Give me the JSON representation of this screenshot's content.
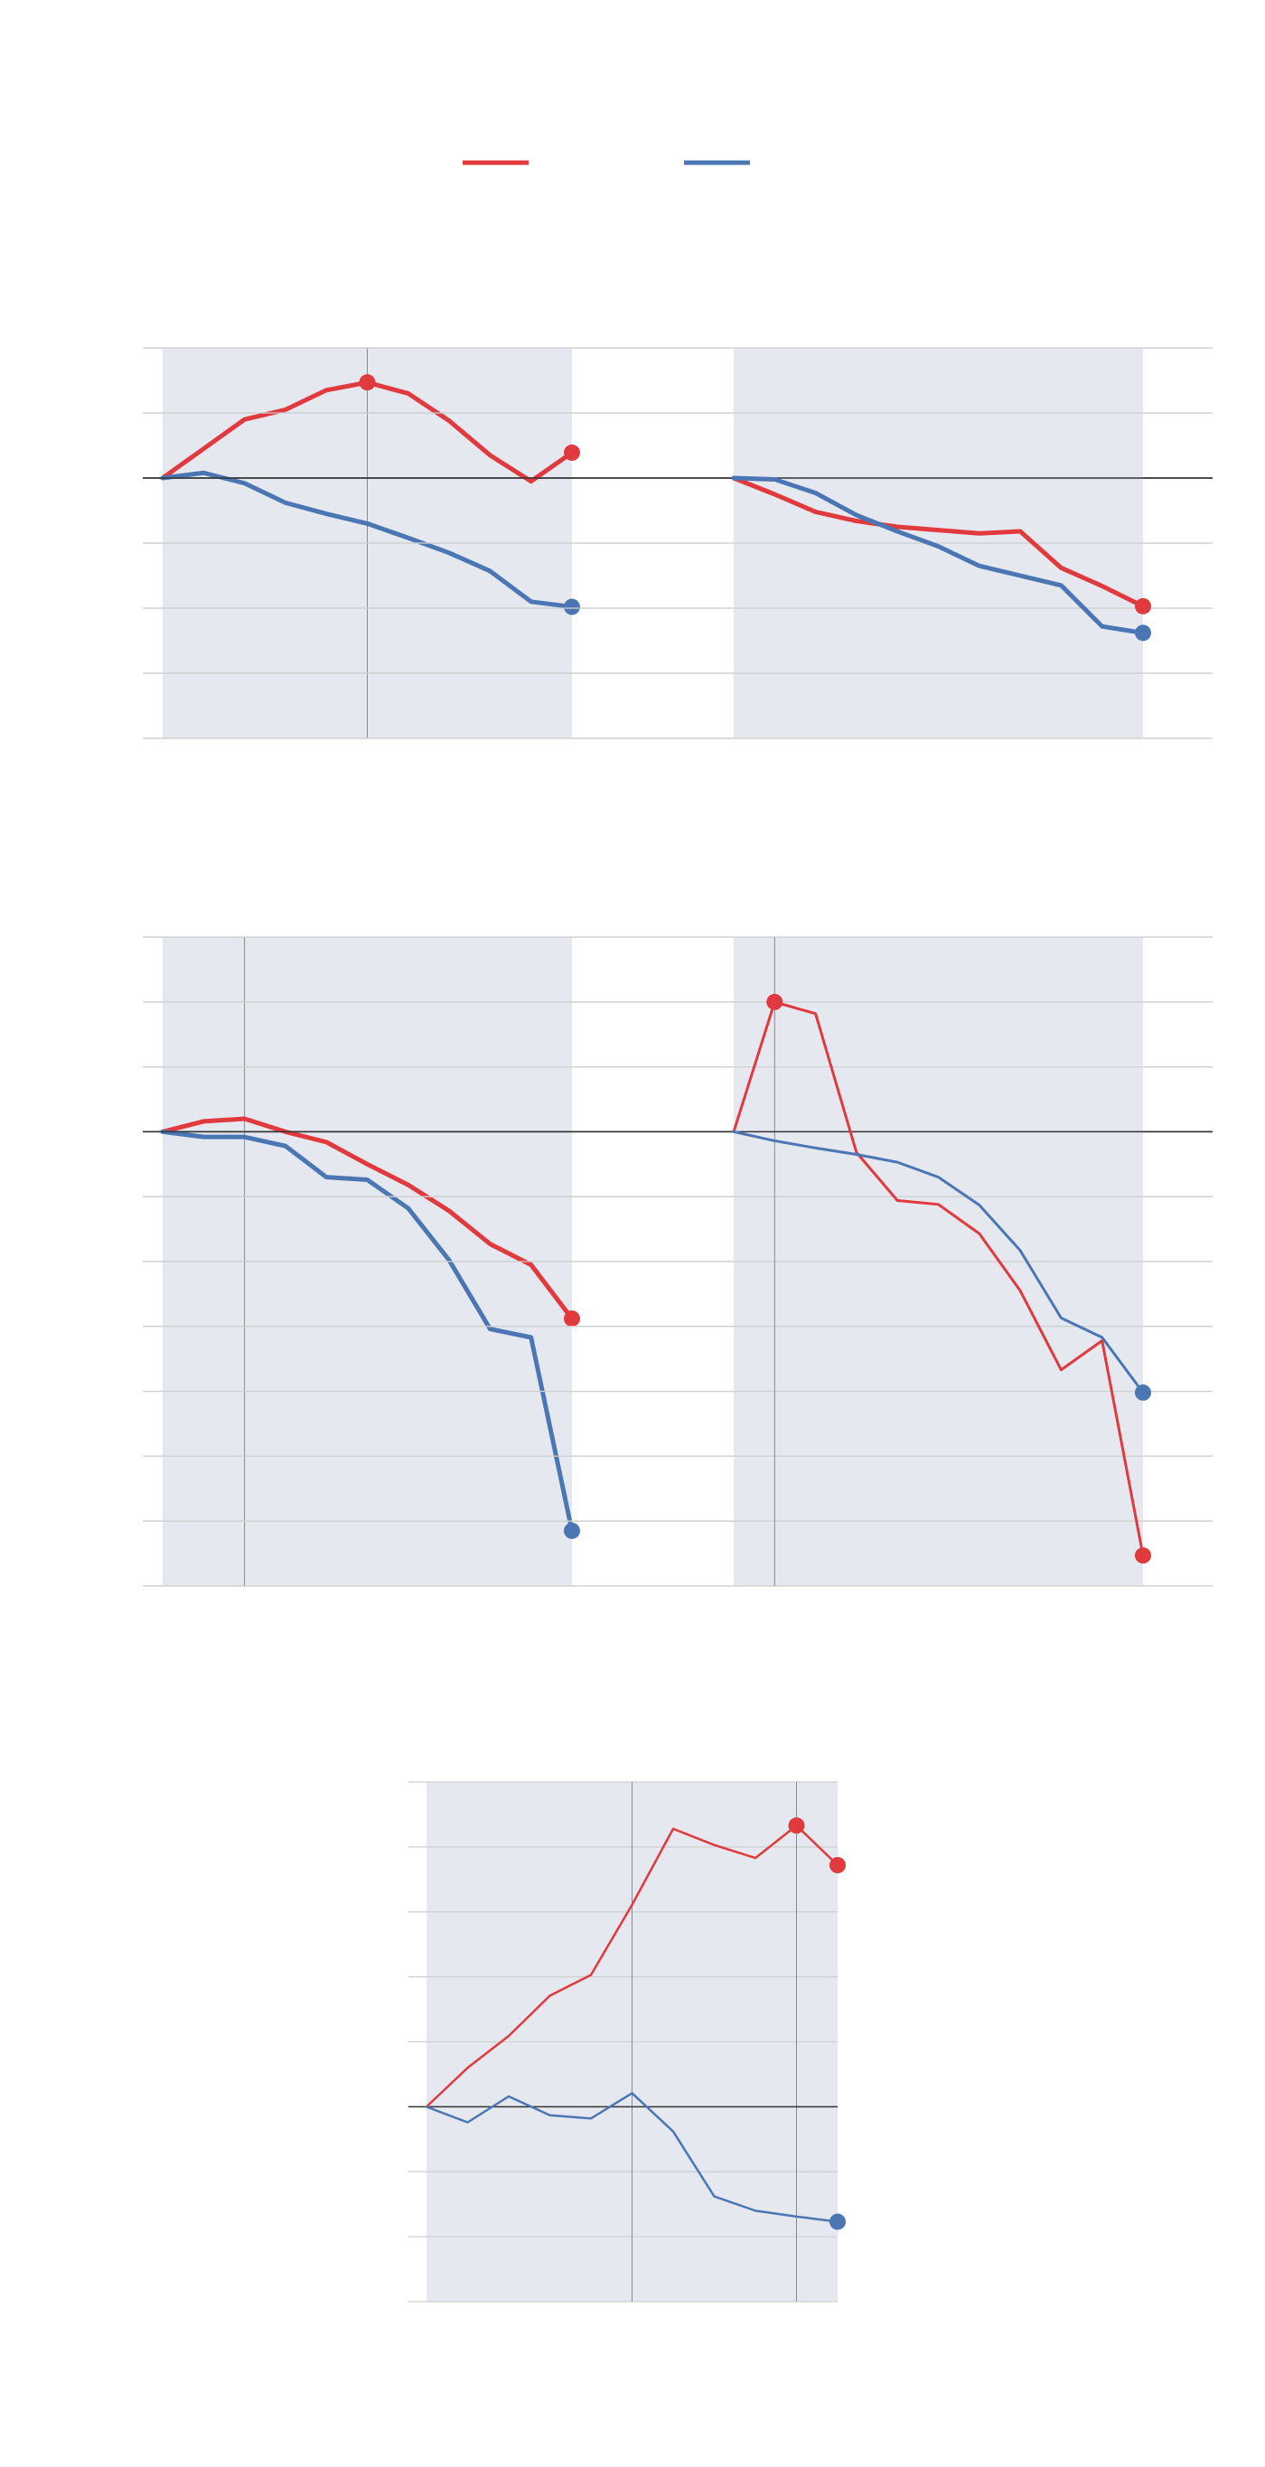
{
  "colors": {
    "series_a": "#e0393e",
    "series_b": "#4a77b4",
    "band": "#e5e8ef",
    "grid": "#cfcfcf",
    "zero_line": "#333333",
    "marker_line": "#8a8a8a"
  },
  "legend": {
    "placement": "top-center",
    "entries": [
      {
        "series": "a",
        "label": ""
      },
      {
        "series": "b",
        "label": ""
      }
    ]
  },
  "chart_data": [
    {
      "type": "line",
      "title": "",
      "xlim": [
        0,
        10
      ],
      "ylim": [
        -4,
        2
      ],
      "grid": true,
      "reference_x": 5,
      "series": [
        {
          "key": "a",
          "values": [
            0,
            0.45,
            0.9,
            1.05,
            1.35,
            1.47,
            1.3,
            0.88,
            0.35,
            -0.05,
            0.39
          ]
        },
        {
          "key": "b",
          "values": [
            0,
            0.08,
            -0.08,
            -0.38,
            -0.55,
            -0.7,
            -0.92,
            -1.15,
            -1.43,
            -1.9,
            -1.98
          ]
        }
      ]
    },
    {
      "type": "line",
      "title": "",
      "xlim": [
        0,
        10
      ],
      "ylim": [
        -4,
        2
      ],
      "grid": true,
      "reference_x": null,
      "series": [
        {
          "key": "a",
          "values": [
            0,
            -0.25,
            -0.52,
            -0.66,
            -0.75,
            -0.8,
            -0.85,
            -0.82,
            -1.38,
            -1.66,
            -1.97
          ]
        },
        {
          "key": "b",
          "values": [
            0,
            -0.02,
            -0.23,
            -0.57,
            -0.82,
            -1.05,
            -1.35,
            -1.5,
            -1.65,
            -2.28,
            -2.38
          ]
        }
      ]
    },
    {
      "type": "line",
      "title": "",
      "xlim": [
        0,
        10
      ],
      "ylim": [
        -7,
        3
      ],
      "grid": true,
      "reference_x": 2,
      "series": [
        {
          "key": "a",
          "values": [
            0,
            0.16,
            0.2,
            0,
            -0.16,
            -0.5,
            -0.82,
            -1.22,
            -1.73,
            -2.05,
            -2.88
          ]
        },
        {
          "key": "b",
          "values": [
            0,
            -0.08,
            -0.08,
            -0.22,
            -0.7,
            -0.74,
            -1.18,
            -1.98,
            -3.04,
            -3.17,
            -6.15
          ]
        }
      ]
    },
    {
      "type": "line",
      "title": "",
      "xlim": [
        0,
        10
      ],
      "ylim": [
        -7,
        3
      ],
      "grid": true,
      "reference_x": 1,
      "series": [
        {
          "key": "a",
          "values": [
            0,
            2,
            1.82,
            -0.32,
            -1.06,
            -1.12,
            -1.57,
            -2.45,
            -3.67,
            -3.22,
            -6.53
          ]
        },
        {
          "key": "b",
          "values": [
            0,
            -0.14,
            -0.25,
            -0.35,
            -0.47,
            -0.7,
            -1.13,
            -1.83,
            -2.87,
            -3.17,
            -4.02
          ]
        }
      ]
    },
    {
      "type": "line",
      "title": "",
      "xlim": [
        0,
        10
      ],
      "ylim": [
        -3,
        5
      ],
      "grid": true,
      "reference_x": [
        5,
        9
      ],
      "series": [
        {
          "key": "a",
          "values": [
            0,
            0.6,
            1.09,
            1.71,
            2.03,
            3.11,
            4.28,
            4.03,
            3.83,
            4.33,
            3.72
          ]
        },
        {
          "key": "b",
          "values": [
            0,
            -0.24,
            0.16,
            -0.13,
            -0.18,
            0.21,
            -0.38,
            -1.38,
            -1.6,
            -1.69,
            -1.77
          ]
        }
      ]
    }
  ]
}
